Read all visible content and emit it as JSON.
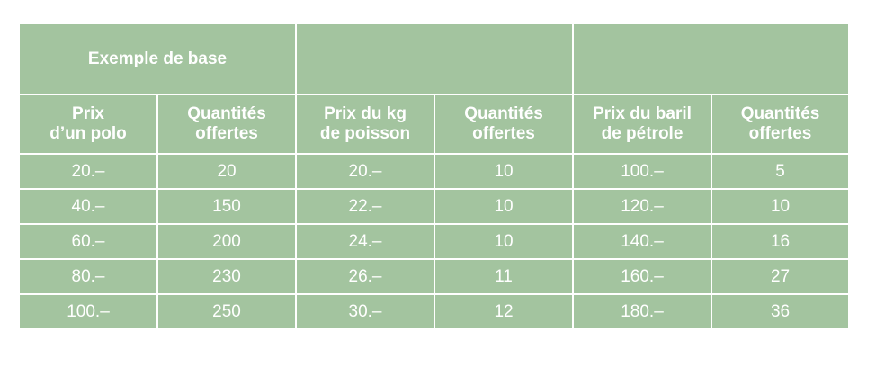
{
  "groups": [
    {
      "title": "Exemple de base"
    },
    {
      "title": ""
    },
    {
      "title": ""
    }
  ],
  "headers": [
    {
      "line1": "Prix",
      "line2": "d’un polo"
    },
    {
      "line1": "Quantités",
      "line2": "offertes"
    },
    {
      "line1": "Prix du kg",
      "line2": "de poisson"
    },
    {
      "line1": "Quantités",
      "line2": "offertes"
    },
    {
      "line1": "Prix du baril",
      "line2": "de pétrole"
    },
    {
      "line1": "Quantités",
      "line2": "offertes"
    }
  ],
  "rows": [
    [
      "20.–",
      "20",
      "20.–",
      "10",
      "100.–",
      "5"
    ],
    [
      "40.–",
      "150",
      "22.–",
      "10",
      "120.–",
      "10"
    ],
    [
      "60.–",
      "200",
      "24.–",
      "10",
      "140.–",
      "16"
    ],
    [
      "80.–",
      "230",
      "26.–",
      "11",
      "160.–",
      "27"
    ],
    [
      "100.–",
      "250",
      "30.–",
      "12",
      "180.–",
      "36"
    ]
  ],
  "colors": {
    "cell_background": "#a3c49f",
    "text": "#ffffff",
    "grid": "#ffffff"
  }
}
